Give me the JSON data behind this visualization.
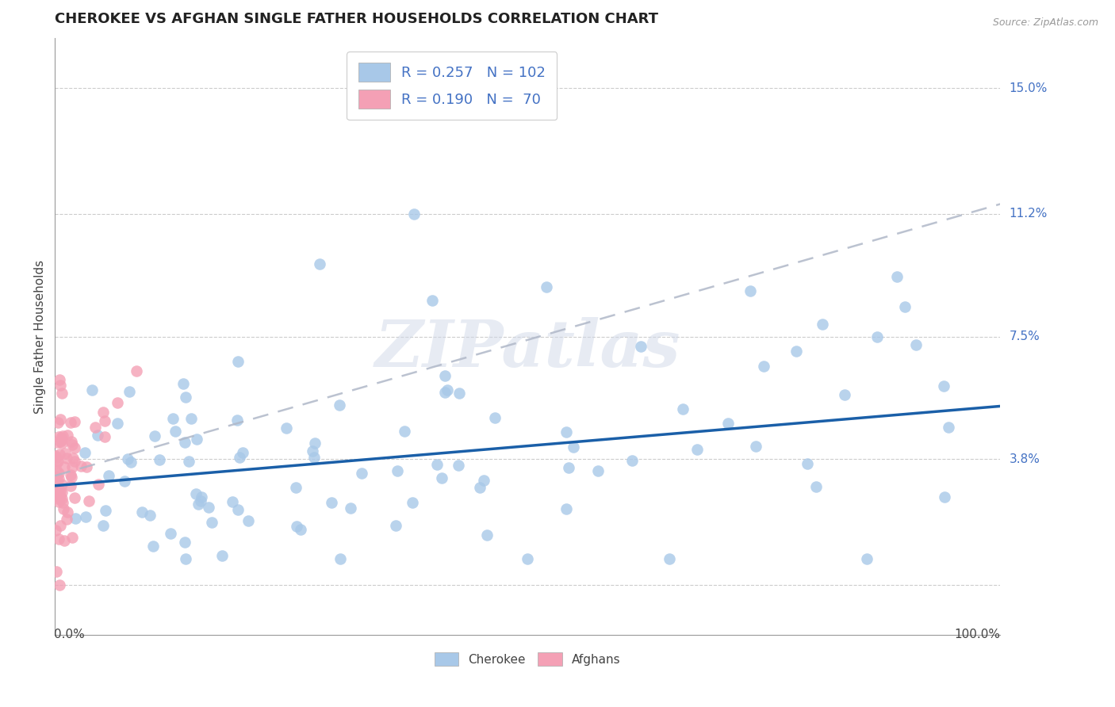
{
  "title": "CHEROKEE VS AFGHAN SINGLE FATHER HOUSEHOLDS CORRELATION CHART",
  "source": "Source: ZipAtlas.com",
  "ylabel": "Single Father Households",
  "cherokee_color": "#a8c8e8",
  "afghan_color": "#f4a0b5",
  "cherokee_line_color": "#1a5fa8",
  "afghan_line_color": "#b0b8c8",
  "ytick_vals": [
    0.038,
    0.075,
    0.112,
    0.15
  ],
  "ytick_labels": [
    "3.8%",
    "7.5%",
    "11.2%",
    "15.0%"
  ],
  "xlim": [
    0.0,
    1.0
  ],
  "ylim": [
    -0.015,
    0.165
  ],
  "legend_label_1": "R = 0.257   N = 102",
  "legend_label_2": "R = 0.190   N =  70",
  "legend_color_1": "#4472c4",
  "legend_color_2": "#e07080",
  "watermark": "ZIPatlas",
  "seed": 12345
}
